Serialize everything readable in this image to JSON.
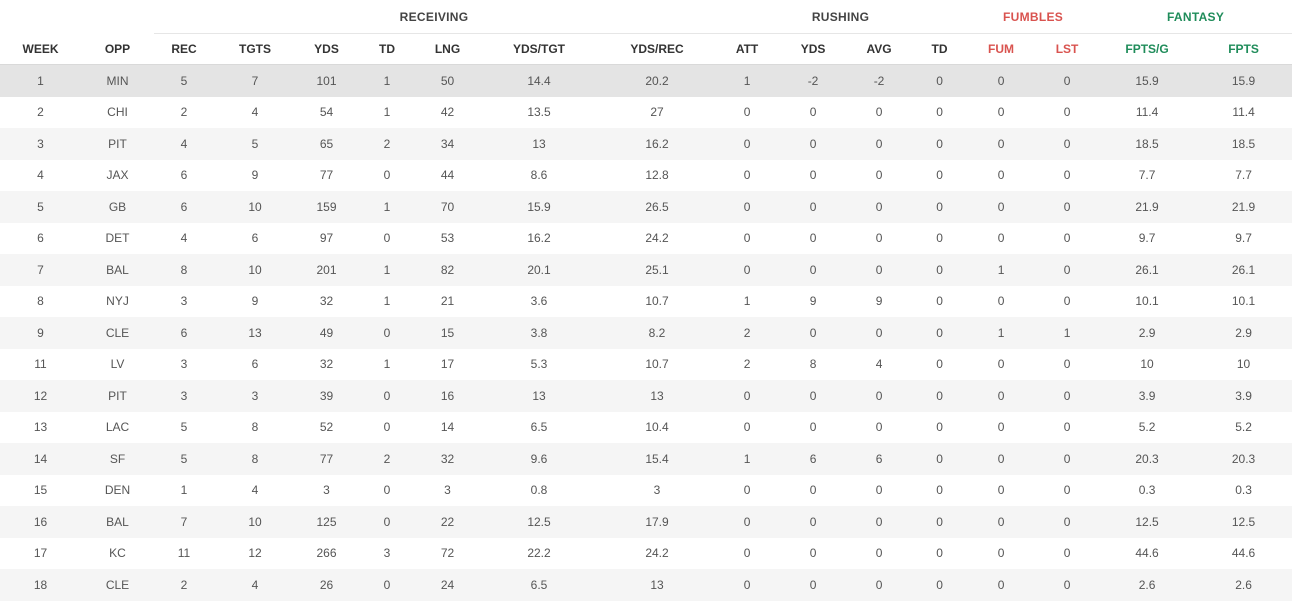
{
  "groups": {
    "receiving": "RECEIVING",
    "rushing": "RUSHING",
    "fumbles": "FUMBLES",
    "fantasy": "FANTASY"
  },
  "columns": [
    "WEEK",
    "OPP",
    "REC",
    "TGTS",
    "YDS",
    "TD",
    "LNG",
    "YDS/TGT",
    "YDS/REC",
    "ATT",
    "YDS",
    "AVG",
    "TD",
    "FUM",
    "LST",
    "FPTS/G",
    "FPTS"
  ],
  "colors": {
    "fumbles": "#d9534f",
    "fantasy": "#1f8c5a",
    "highlight_row": "#e4e4e4"
  },
  "rows": [
    [
      "1",
      "MIN",
      "5",
      "7",
      "101",
      "1",
      "50",
      "14.4",
      "20.2",
      "1",
      "-2",
      "-2",
      "0",
      "0",
      "0",
      "15.9",
      "15.9"
    ],
    [
      "2",
      "CHI",
      "2",
      "4",
      "54",
      "1",
      "42",
      "13.5",
      "27",
      "0",
      "0",
      "0",
      "0",
      "0",
      "0",
      "11.4",
      "11.4"
    ],
    [
      "3",
      "PIT",
      "4",
      "5",
      "65",
      "2",
      "34",
      "13",
      "16.2",
      "0",
      "0",
      "0",
      "0",
      "0",
      "0",
      "18.5",
      "18.5"
    ],
    [
      "4",
      "JAX",
      "6",
      "9",
      "77",
      "0",
      "44",
      "8.6",
      "12.8",
      "0",
      "0",
      "0",
      "0",
      "0",
      "0",
      "7.7",
      "7.7"
    ],
    [
      "5",
      "GB",
      "6",
      "10",
      "159",
      "1",
      "70",
      "15.9",
      "26.5",
      "0",
      "0",
      "0",
      "0",
      "0",
      "0",
      "21.9",
      "21.9"
    ],
    [
      "6",
      "DET",
      "4",
      "6",
      "97",
      "0",
      "53",
      "16.2",
      "24.2",
      "0",
      "0",
      "0",
      "0",
      "0",
      "0",
      "9.7",
      "9.7"
    ],
    [
      "7",
      "BAL",
      "8",
      "10",
      "201",
      "1",
      "82",
      "20.1",
      "25.1",
      "0",
      "0",
      "0",
      "0",
      "1",
      "0",
      "26.1",
      "26.1"
    ],
    [
      "8",
      "NYJ",
      "3",
      "9",
      "32",
      "1",
      "21",
      "3.6",
      "10.7",
      "1",
      "9",
      "9",
      "0",
      "0",
      "0",
      "10.1",
      "10.1"
    ],
    [
      "9",
      "CLE",
      "6",
      "13",
      "49",
      "0",
      "15",
      "3.8",
      "8.2",
      "2",
      "0",
      "0",
      "0",
      "1",
      "1",
      "2.9",
      "2.9"
    ],
    [
      "11",
      "LV",
      "3",
      "6",
      "32",
      "1",
      "17",
      "5.3",
      "10.7",
      "2",
      "8",
      "4",
      "0",
      "0",
      "0",
      "10",
      "10"
    ],
    [
      "12",
      "PIT",
      "3",
      "3",
      "39",
      "0",
      "16",
      "13",
      "13",
      "0",
      "0",
      "0",
      "0",
      "0",
      "0",
      "3.9",
      "3.9"
    ],
    [
      "13",
      "LAC",
      "5",
      "8",
      "52",
      "0",
      "14",
      "6.5",
      "10.4",
      "0",
      "0",
      "0",
      "0",
      "0",
      "0",
      "5.2",
      "5.2"
    ],
    [
      "14",
      "SF",
      "5",
      "8",
      "77",
      "2",
      "32",
      "9.6",
      "15.4",
      "1",
      "6",
      "6",
      "0",
      "0",
      "0",
      "20.3",
      "20.3"
    ],
    [
      "15",
      "DEN",
      "1",
      "4",
      "3",
      "0",
      "3",
      "0.8",
      "3",
      "0",
      "0",
      "0",
      "0",
      "0",
      "0",
      "0.3",
      "0.3"
    ],
    [
      "16",
      "BAL",
      "7",
      "10",
      "125",
      "0",
      "22",
      "12.5",
      "17.9",
      "0",
      "0",
      "0",
      "0",
      "0",
      "0",
      "12.5",
      "12.5"
    ],
    [
      "17",
      "KC",
      "11",
      "12",
      "266",
      "3",
      "72",
      "22.2",
      "24.2",
      "0",
      "0",
      "0",
      "0",
      "0",
      "0",
      "44.6",
      "44.6"
    ],
    [
      "18",
      "CLE",
      "2",
      "4",
      "26",
      "0",
      "24",
      "6.5",
      "13",
      "0",
      "0",
      "0",
      "0",
      "0",
      "0",
      "2.6",
      "2.6"
    ]
  ]
}
